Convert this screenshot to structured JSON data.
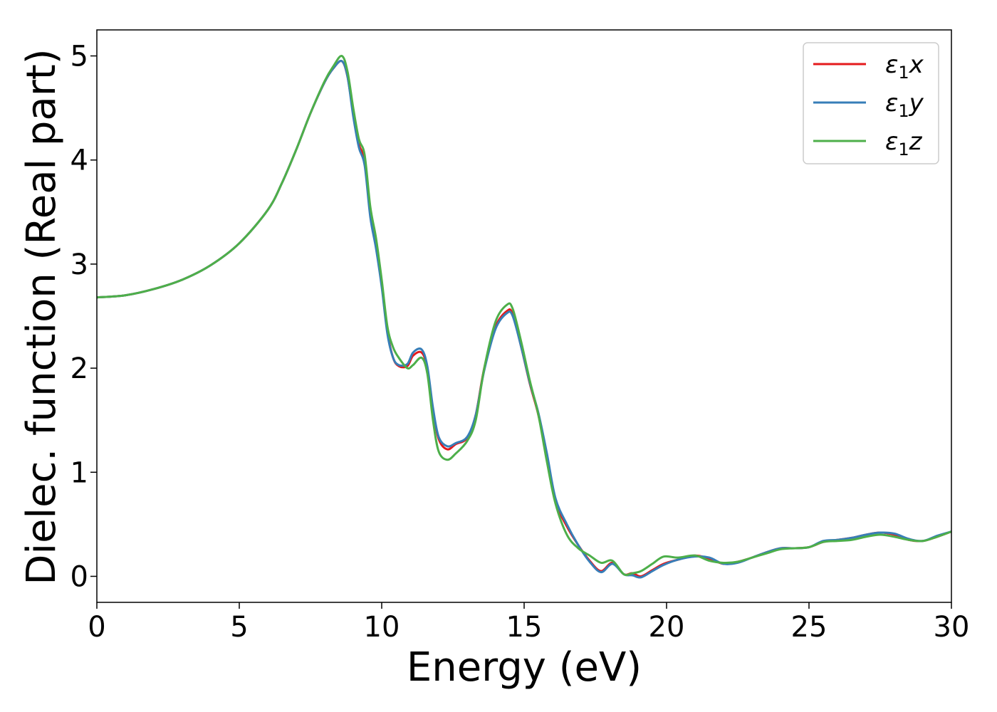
{
  "chart_data": {
    "type": "line",
    "title": "",
    "xlabel": "Energy (eV)",
    "ylabel": "Dielec. function (Real part)",
    "xlim": [
      0,
      30
    ],
    "ylim": [
      -0.25,
      5.25
    ],
    "xticks": [
      "0",
      "5",
      "10",
      "15",
      "20",
      "25",
      "30"
    ],
    "yticks": [
      "0",
      "1",
      "2",
      "3",
      "4",
      "5"
    ],
    "grid": false,
    "legend_position": "top-right",
    "series": [
      {
        "name": "ε1x",
        "symbol": "ε",
        "subscript": "1",
        "component": "x",
        "color": "#e41a1c",
        "x": [
          0,
          1,
          2,
          3,
          4,
          5,
          6,
          6.5,
          7,
          7.5,
          8,
          8.3,
          8.6,
          8.8,
          9,
          9.2,
          9.4,
          9.6,
          9.8,
          10,
          10.2,
          10.4,
          10.6,
          10.9,
          11.1,
          11.4,
          11.6,
          11.8,
          12,
          12.3,
          12.6,
          13,
          13.3,
          13.6,
          14,
          14.4,
          14.6,
          14.9,
          15.2,
          15.5,
          15.8,
          16.1,
          16.5,
          16.9,
          17.3,
          17.7,
          18.1,
          18.5,
          18.8,
          19.1,
          19.5,
          19.9,
          20.4,
          21,
          21.5,
          22,
          22.5,
          23,
          23.5,
          24,
          24.5,
          25,
          25.5,
          26,
          26.5,
          27,
          27.5,
          28,
          28.5,
          29,
          29.5,
          30
        ],
        "y": [
          2.68,
          2.7,
          2.76,
          2.85,
          2.99,
          3.2,
          3.52,
          3.78,
          4.1,
          4.45,
          4.75,
          4.88,
          4.95,
          4.8,
          4.45,
          4.15,
          4.0,
          3.5,
          3.2,
          2.8,
          2.35,
          2.1,
          2.02,
          2.02,
          2.12,
          2.15,
          2.0,
          1.6,
          1.32,
          1.22,
          1.27,
          1.33,
          1.55,
          2.0,
          2.4,
          2.55,
          2.52,
          2.2,
          1.85,
          1.55,
          1.15,
          0.72,
          0.48,
          0.3,
          0.15,
          0.05,
          0.13,
          0.02,
          0.03,
          0.0,
          0.06,
          0.12,
          0.16,
          0.2,
          0.17,
          0.12,
          0.14,
          0.18,
          0.23,
          0.27,
          0.27,
          0.28,
          0.33,
          0.35,
          0.37,
          0.4,
          0.42,
          0.4,
          0.35,
          0.34,
          0.38,
          0.43
        ]
      },
      {
        "name": "ε1y",
        "symbol": "ε",
        "subscript": "1",
        "component": "y",
        "color": "#377eb8",
        "x": [
          0,
          1,
          2,
          3,
          4,
          5,
          6,
          6.5,
          7,
          7.5,
          8,
          8.3,
          8.6,
          8.8,
          9,
          9.2,
          9.4,
          9.6,
          9.8,
          10,
          10.2,
          10.4,
          10.6,
          10.9,
          11.1,
          11.4,
          11.6,
          11.8,
          12,
          12.3,
          12.6,
          13,
          13.3,
          13.6,
          14,
          14.4,
          14.6,
          14.9,
          15.2,
          15.5,
          15.8,
          16.1,
          16.5,
          16.9,
          17.3,
          17.7,
          18.1,
          18.5,
          18.8,
          19.1,
          19.5,
          19.9,
          20.4,
          21,
          21.5,
          22,
          22.5,
          23,
          23.5,
          24,
          24.5,
          25,
          25.5,
          26,
          26.5,
          27,
          27.5,
          28,
          28.5,
          29,
          29.5,
          30
        ],
        "y": [
          2.68,
          2.7,
          2.76,
          2.85,
          2.99,
          3.2,
          3.52,
          3.78,
          4.1,
          4.45,
          4.75,
          4.88,
          4.95,
          4.8,
          4.42,
          4.12,
          3.95,
          3.45,
          3.15,
          2.78,
          2.33,
          2.1,
          2.03,
          2.04,
          2.15,
          2.18,
          2.02,
          1.62,
          1.34,
          1.25,
          1.28,
          1.34,
          1.55,
          1.98,
          2.38,
          2.53,
          2.5,
          2.2,
          1.86,
          1.57,
          1.18,
          0.75,
          0.5,
          0.3,
          0.14,
          0.04,
          0.12,
          0.02,
          0.01,
          -0.01,
          0.05,
          0.11,
          0.16,
          0.19,
          0.18,
          0.12,
          0.13,
          0.18,
          0.23,
          0.27,
          0.27,
          0.28,
          0.34,
          0.35,
          0.37,
          0.4,
          0.42,
          0.41,
          0.36,
          0.34,
          0.39,
          0.43
        ]
      },
      {
        "name": "ε1z",
        "symbol": "ε",
        "subscript": "1",
        "component": "z",
        "color": "#4daf4a",
        "x": [
          0,
          1,
          2,
          3,
          4,
          5,
          6,
          6.5,
          7,
          7.5,
          8,
          8.3,
          8.6,
          8.8,
          9,
          9.2,
          9.4,
          9.6,
          9.8,
          10,
          10.2,
          10.4,
          10.6,
          10.9,
          11.1,
          11.4,
          11.6,
          11.8,
          12,
          12.3,
          12.6,
          13,
          13.3,
          13.6,
          14,
          14.4,
          14.6,
          14.9,
          15.2,
          15.5,
          15.8,
          16.1,
          16.5,
          16.9,
          17.3,
          17.7,
          18.1,
          18.5,
          18.8,
          19.1,
          19.5,
          19.9,
          20.4,
          21,
          21.5,
          22,
          22.5,
          23,
          23.5,
          24,
          24.5,
          25,
          25.5,
          26,
          26.5,
          27,
          27.5,
          28,
          28.5,
          29,
          29.5,
          30
        ],
        "y": [
          2.68,
          2.7,
          2.76,
          2.85,
          2.99,
          3.2,
          3.52,
          3.78,
          4.1,
          4.45,
          4.76,
          4.9,
          5.0,
          4.85,
          4.5,
          4.2,
          4.05,
          3.55,
          3.25,
          2.85,
          2.4,
          2.2,
          2.1,
          2.0,
          2.03,
          2.1,
          1.95,
          1.5,
          1.2,
          1.12,
          1.18,
          1.3,
          1.5,
          2.0,
          2.45,
          2.61,
          2.57,
          2.25,
          1.88,
          1.55,
          1.1,
          0.7,
          0.4,
          0.27,
          0.2,
          0.13,
          0.15,
          0.02,
          0.03,
          0.05,
          0.12,
          0.19,
          0.18,
          0.2,
          0.15,
          0.13,
          0.14,
          0.18,
          0.22,
          0.26,
          0.27,
          0.28,
          0.33,
          0.34,
          0.35,
          0.38,
          0.4,
          0.38,
          0.35,
          0.34,
          0.38,
          0.43
        ]
      }
    ]
  }
}
